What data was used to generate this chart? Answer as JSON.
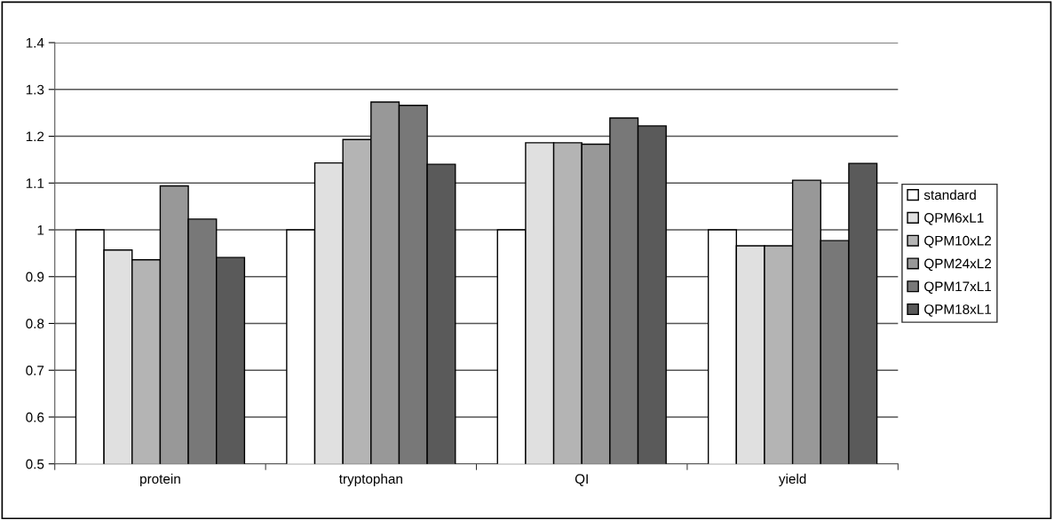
{
  "chart_data": {
    "type": "bar",
    "categories": [
      "protein",
      "tryptophan",
      "QI",
      "yield"
    ],
    "series": [
      {
        "name": "standard",
        "color": "#ffffff",
        "values": [
          1.0,
          1.0,
          1.0,
          1.0
        ]
      },
      {
        "name": "QPM6xL1",
        "color": "#e0e0e0",
        "values": [
          0.957,
          1.143,
          1.186,
          0.966
        ]
      },
      {
        "name": "QPM10xL2",
        "color": "#b4b4b4",
        "values": [
          0.936,
          1.193,
          1.186,
          0.966
        ]
      },
      {
        "name": "QPM24xL2",
        "color": "#989898",
        "values": [
          1.094,
          1.273,
          1.183,
          1.106
        ]
      },
      {
        "name": "QPM17xL1",
        "color": "#787878",
        "values": [
          1.023,
          1.266,
          1.239,
          0.977
        ]
      },
      {
        "name": "QPM18xL1",
        "color": "#5a5a5a",
        "values": [
          0.941,
          1.14,
          1.222,
          1.142
        ]
      }
    ],
    "ylim": [
      0.5,
      1.4
    ],
    "yticks": [
      0.5,
      0.6,
      0.7,
      0.8,
      0.9,
      1,
      1.1,
      1.2,
      1.3,
      1.4
    ],
    "grid": "y",
    "legend": "right"
  }
}
